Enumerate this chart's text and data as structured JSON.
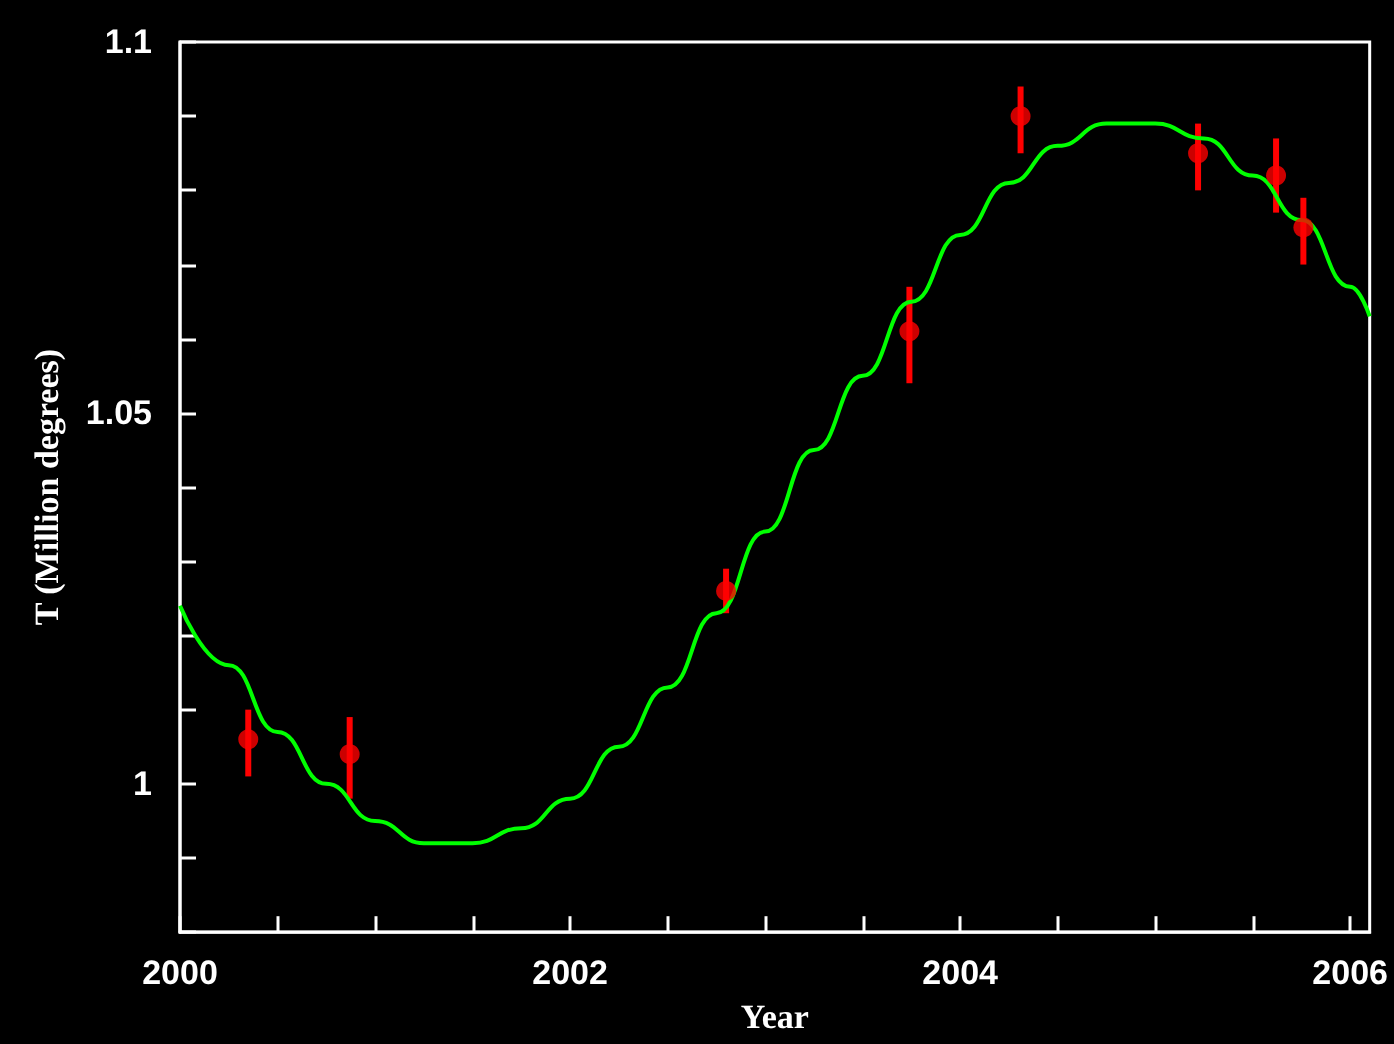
{
  "chart_data": {
    "type": "scatter",
    "xlabel": "Year",
    "ylabel": "T (Million degrees)",
    "xlim": [
      2000,
      2006.1
    ],
    "ylim": [
      0.98,
      1.1
    ],
    "xticks": [
      2000,
      {
        "value": 2000.5,
        "label": null
      },
      {
        "value": 2001,
        "label": null
      },
      {
        "value": 2001.5,
        "label": null
      },
      2002,
      {
        "value": 2002.5,
        "label": null
      },
      {
        "value": 2003,
        "label": null
      },
      {
        "value": 2003.5,
        "label": null
      },
      2004,
      {
        "value": 2004.5,
        "label": null
      },
      {
        "value": 2005,
        "label": null
      },
      {
        "value": 2005.5,
        "label": null
      },
      2006
    ],
    "yticks": [
      {
        "value": 0.98,
        "label": null
      },
      {
        "value": 0.99,
        "label": null
      },
      1,
      {
        "value": 1.01,
        "label": null
      },
      {
        "value": 1.02,
        "label": null
      },
      {
        "value": 1.03,
        "label": null
      },
      {
        "value": 1.04,
        "label": null
      },
      1.05,
      {
        "value": 1.06,
        "label": null
      },
      {
        "value": 1.07,
        "label": null
      },
      {
        "value": 1.08,
        "label": null
      },
      {
        "value": 1.09,
        "label": null
      },
      1.1
    ],
    "grid": false,
    "series": [
      {
        "type": "line",
        "color": "#00ff00",
        "marker": "none",
        "line_style": "solid",
        "x": [
          2000,
          2000.25,
          2000.5,
          2000.75,
          2001,
          2001.25,
          2001.5,
          2001.75,
          2002,
          2002.25,
          2002.5,
          2002.75,
          2003,
          2003.25,
          2003.5,
          2003.75,
          2004,
          2004.25,
          2004.5,
          2004.75,
          2005,
          2005.25,
          2005.5,
          2005.75,
          2006,
          2006.1
        ],
        "values": [
          1.024,
          1.016,
          1.007,
          1.0,
          0.995,
          0.992,
          0.992,
          0.994,
          0.998,
          1.005,
          1.013,
          1.023,
          1.034,
          1.045,
          1.055,
          1.065,
          1.074,
          1.081,
          1.086,
          1.089,
          1.089,
          1.087,
          1.082,
          1.076,
          1.067,
          1.063
        ]
      },
      {
        "color": "#ff0000",
        "marker": "circle",
        "x": [
          2000.35,
          2000.87,
          2002.8,
          2003.74,
          2004.31,
          2005.22,
          2005.62,
          2005.76
        ],
        "values": [
          1.006,
          1.004,
          1.026,
          1.061,
          1.09,
          1.085,
          1.082,
          1.075
        ],
        "errors": [
          [
            1.001,
            1.01
          ],
          [
            0.998,
            1.009
          ],
          [
            1.023,
            1.029
          ],
          [
            1.054,
            1.067
          ],
          [
            1.085,
            1.094
          ],
          [
            1.08,
            1.089
          ],
          [
            1.077,
            1.087
          ],
          [
            1.07,
            1.079
          ]
        ]
      }
    ]
  }
}
